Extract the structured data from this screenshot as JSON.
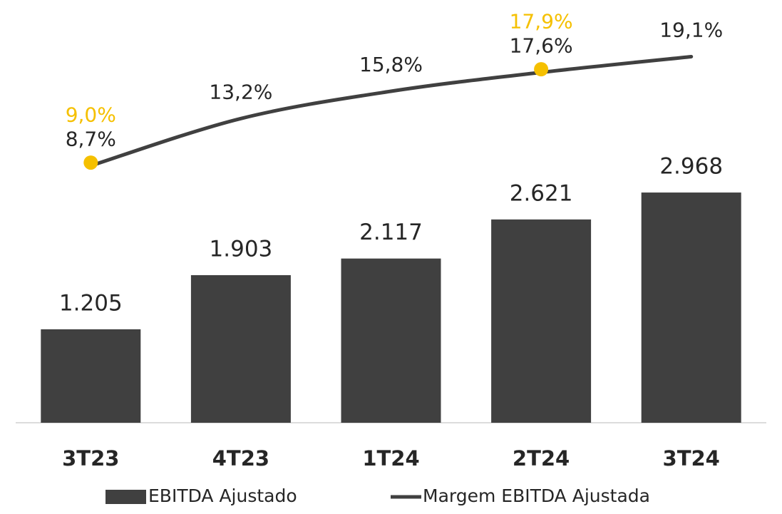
{
  "chart_data": {
    "type": "bar",
    "categories": [
      "3T23",
      "4T23",
      "1T24",
      "2T24",
      "3T24"
    ],
    "ylim": [
      0,
      5450
    ],
    "y2lim": [
      -15.8,
      24.5
    ],
    "series": [
      {
        "name": "EBITDA Ajustado",
        "type": "bar",
        "color": "#404040",
        "values": [
          1205,
          1903,
          2117,
          2621,
          2968
        ],
        "value_labels": [
          "1.205",
          "1.903",
          "2.117",
          "2.621",
          "2.968"
        ]
      },
      {
        "name": "Margem EBITDA Ajustada",
        "type": "line",
        "axis": "y2",
        "color": "#404040",
        "values": [
          8.7,
          13.2,
          15.8,
          17.6,
          19.1
        ],
        "value_labels": [
          "8,7%",
          "13,2%",
          "15,8%",
          "17,6%",
          "19,1%"
        ]
      },
      {
        "type": "marker",
        "axis": "y2",
        "color": "#f5c000",
        "values": [
          9.0,
          null,
          null,
          17.9,
          null
        ],
        "value_labels": [
          "9,0%",
          null,
          null,
          "17,9%",
          null
        ]
      }
    ]
  }
}
